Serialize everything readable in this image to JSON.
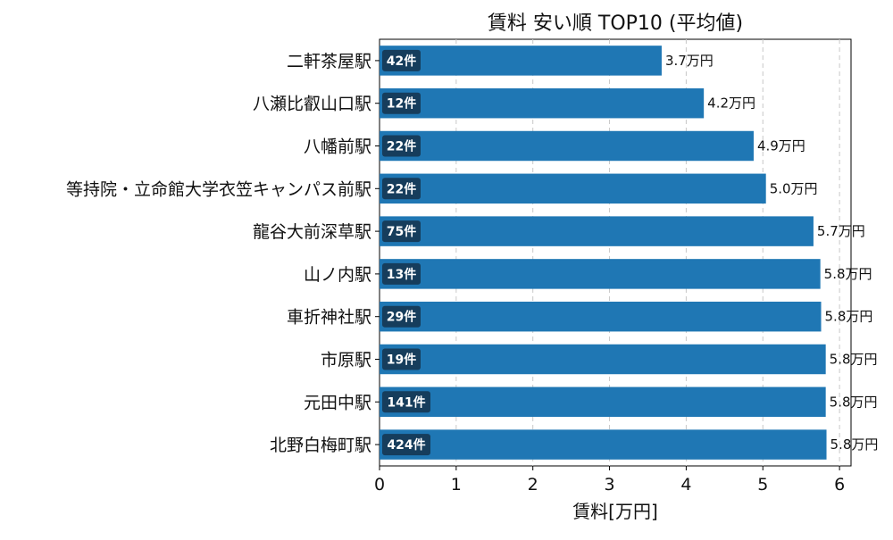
{
  "chart_data": {
    "type": "bar",
    "orientation": "horizontal",
    "title": "賃料 安い順 TOP10 (平均値)",
    "xlabel": "賃料[万円]",
    "ylabel": "",
    "xlim": [
      0,
      6.15
    ],
    "xticks": [
      0,
      1,
      2,
      3,
      4,
      5,
      6
    ],
    "grid": "x-dashed",
    "bar_color": "#1f77b4",
    "badge_color": "#163d5c",
    "categories": [
      "二軒茶屋駅",
      "八瀬比叡山口駅",
      "八幡前駅",
      "等持院・立命館大学衣笠キャンパス前駅",
      "龍谷大前深草駅",
      "山ノ内駅",
      "車折神社駅",
      "市原駅",
      "元田中駅",
      "北野白梅町駅"
    ],
    "values": [
      3.68,
      4.23,
      4.88,
      5.04,
      5.66,
      5.75,
      5.76,
      5.82,
      5.82,
      5.83
    ],
    "value_labels": [
      "3.7万円",
      "4.2万円",
      "4.9万円",
      "5.0万円",
      "5.7万円",
      "5.8万円",
      "5.8万円",
      "5.8万円",
      "5.8万円",
      "5.8万円"
    ],
    "count_labels": [
      "42件",
      "12件",
      "22件",
      "22件",
      "75件",
      "13件",
      "29件",
      "19件",
      "141件",
      "424件"
    ]
  }
}
